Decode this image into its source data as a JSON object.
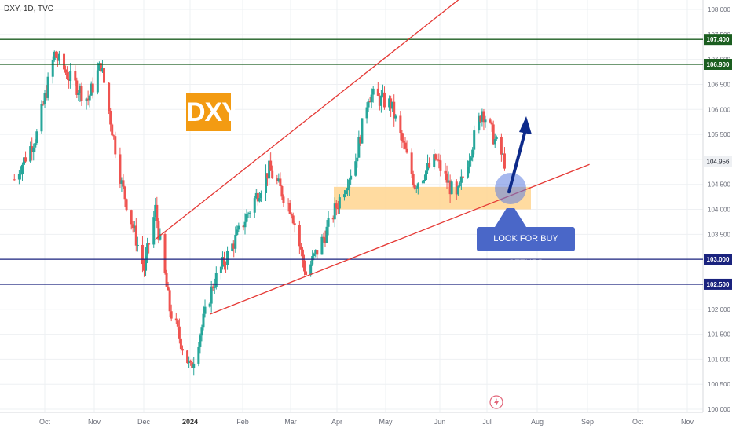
{
  "header": {
    "symbol_label": "DXY, 1D, TVC"
  },
  "annotations": {
    "badge_text": "DXY",
    "callout_text": "LOOK FOR BUY SETUPS",
    "flash_icon": "lightning-icon"
  },
  "colors": {
    "up": "#26a69a",
    "down": "#ef5350",
    "trend_line": "#e53935",
    "zone_fill": "#ffd58f",
    "badge": "#f39b12",
    "callout": "#4a67c8",
    "resistance_level": "#1b5e20",
    "support_level": "#1a237e",
    "arrow": "#0d2a8a"
  },
  "chart_data": {
    "type": "candlestick",
    "title": "DXY, 1D, TVC",
    "ylim": [
      100.0,
      108.1
    ],
    "y_ticks": [
      "100.000",
      "100.500",
      "101.000",
      "101.500",
      "102.000",
      "102.500",
      "103.000",
      "103.500",
      "104.000",
      "104.500",
      "105.000",
      "105.500",
      "106.000",
      "106.500",
      "107.000",
      "107.500",
      "108.000"
    ],
    "x_ticks": [
      {
        "label": "Oct",
        "bold": false
      },
      {
        "label": "Nov",
        "bold": false
      },
      {
        "label": "Dec",
        "bold": false
      },
      {
        "label": "2024",
        "bold": true
      },
      {
        "label": "Feb",
        "bold": false
      },
      {
        "label": "Mar",
        "bold": false
      },
      {
        "label": "Apr",
        "bold": false
      },
      {
        "label": "May",
        "bold": false
      },
      {
        "label": "Jun",
        "bold": false
      },
      {
        "label": "Jul",
        "bold": false
      },
      {
        "label": "Aug",
        "bold": false
      },
      {
        "label": "Sep",
        "bold": false
      },
      {
        "label": "Oct",
        "bold": false
      },
      {
        "label": "Nov",
        "bold": false
      }
    ],
    "horizontal_levels": [
      {
        "value": 107.4,
        "label": "107.400",
        "role": "resistance"
      },
      {
        "value": 106.9,
        "label": "106.900",
        "role": "resistance"
      },
      {
        "value": 103.0,
        "label": "103.000",
        "role": "support"
      },
      {
        "value": 102.5,
        "label": "102.500",
        "role": "support"
      }
    ],
    "last_price": {
      "value": 104.956,
      "label": "104.956"
    },
    "demand_zone": {
      "low": 104.0,
      "high": 104.45
    },
    "close_path": [
      {
        "date": "2023-09-08",
        "close": 104.6
      },
      {
        "date": "2023-09-22",
        "close": 105.5
      },
      {
        "date": "2023-10-03",
        "close": 107.1
      },
      {
        "date": "2023-10-13",
        "close": 106.6
      },
      {
        "date": "2023-10-24",
        "close": 106.2
      },
      {
        "date": "2023-11-01",
        "close": 106.9
      },
      {
        "date": "2023-11-14",
        "close": 104.5
      },
      {
        "date": "2023-11-28",
        "close": 102.8
      },
      {
        "date": "2023-12-05",
        "close": 104.0
      },
      {
        "date": "2023-12-14",
        "close": 102.0
      },
      {
        "date": "2023-12-27",
        "close": 100.8
      },
      {
        "date": "2024-01-10",
        "close": 102.5
      },
      {
        "date": "2024-01-24",
        "close": 103.4
      },
      {
        "date": "2024-02-14",
        "close": 104.8
      },
      {
        "date": "2024-02-28",
        "close": 104.0
      },
      {
        "date": "2024-03-08",
        "close": 102.7
      },
      {
        "date": "2024-03-20",
        "close": 103.5
      },
      {
        "date": "2024-04-08",
        "close": 105.0
      },
      {
        "date": "2024-04-16",
        "close": 106.3
      },
      {
        "date": "2024-04-30",
        "close": 106.1
      },
      {
        "date": "2024-05-15",
        "close": 104.5
      },
      {
        "date": "2024-05-28",
        "close": 105.0
      },
      {
        "date": "2024-06-10",
        "close": 104.2
      },
      {
        "date": "2024-06-26",
        "close": 106.0
      },
      {
        "date": "2024-07-05",
        "close": 105.3
      },
      {
        "date": "2024-07-10",
        "close": 104.956
      }
    ],
    "trendlines": [
      {
        "name": "upper-channel",
        "from": {
          "date": "2023-12-05",
          "value": 103.4
        },
        "to": {
          "date": "2024-07-25",
          "value": 109.3
        }
      },
      {
        "name": "lower-channel",
        "from": {
          "date": "2024-01-08",
          "value": 101.9
        },
        "to": {
          "date": "2024-09-01",
          "value": 104.9
        }
      }
    ],
    "projection_arrow": {
      "from": {
        "date": "2024-07-12",
        "value": 104.35
      },
      "to": {
        "date": "2024-07-20",
        "value": 105.8
      }
    }
  }
}
